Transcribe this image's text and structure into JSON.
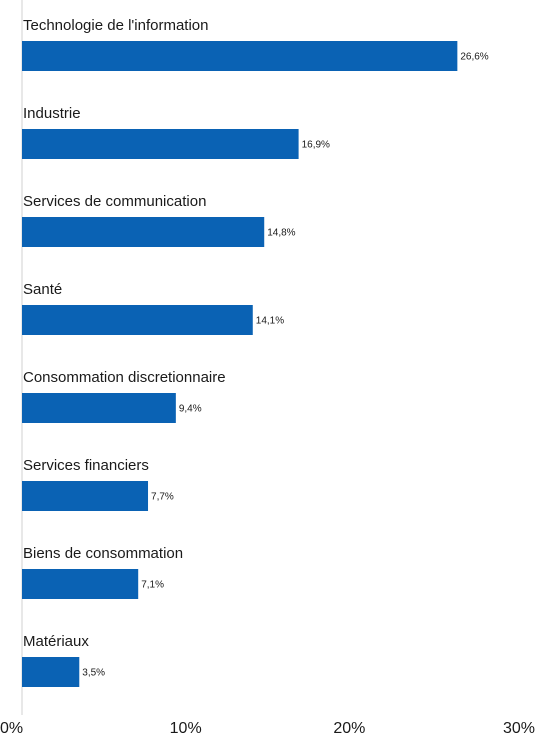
{
  "chart_data": {
    "type": "bar",
    "orientation": "horizontal",
    "title": "",
    "xlabel": "",
    "ylabel": "",
    "categories": [
      "Technologie de l'information",
      "Industrie",
      "Services de communication",
      "Santé",
      "Consommation discretionnaire",
      "Services financiers",
      "Biens de consommation",
      "Matériaux"
    ],
    "values": [
      26.6,
      16.9,
      14.8,
      14.1,
      9.4,
      7.7,
      7.1,
      3.5
    ],
    "value_labels": [
      "26,6%",
      "16,9%",
      "14,8%",
      "14,1%",
      "9,4%",
      "7,7%",
      "7,1%",
      "3,5%"
    ],
    "xlim": [
      0,
      30
    ],
    "x_ticks": [
      0,
      10,
      20,
      30
    ],
    "x_tick_labels": [
      "0%",
      "10%",
      "20%",
      "30%"
    ],
    "grid": false,
    "legend": "none",
    "colors": {
      "bar": "#0a62b4",
      "axis": "#d0d0d0",
      "category_text": "#1a1a1a",
      "value_text": "#1a1a1a",
      "tick_text": "#1a1a1a"
    }
  }
}
